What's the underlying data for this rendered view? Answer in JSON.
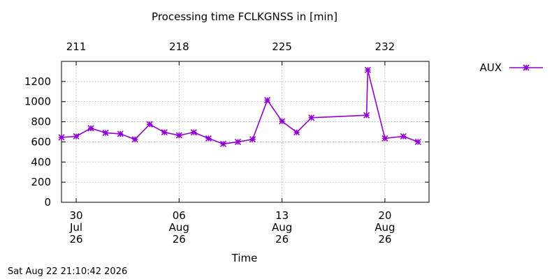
{
  "chart_data": {
    "type": "line",
    "title": "Processing time FCLKGNSS in [min]",
    "xlabel": "Time",
    "ylabel": "",
    "ylim": [
      0,
      1400
    ],
    "yticks": [
      0,
      200,
      400,
      600,
      800,
      1000,
      1200
    ],
    "x_range": [
      "2026-07-29",
      "2026-08-23"
    ],
    "x_ticks": [
      {
        "date": "2026-07-30",
        "label": [
          "30",
          "Jul",
          "26"
        ]
      },
      {
        "date": "2026-08-06",
        "label": [
          "06",
          "Aug",
          "26"
        ]
      },
      {
        "date": "2026-08-13",
        "label": [
          "13",
          "Aug",
          "26"
        ]
      },
      {
        "date": "2026-08-20",
        "label": [
          "20",
          "Aug",
          "26"
        ]
      }
    ],
    "x2_ticks": [
      {
        "date": "2026-07-30",
        "label": "211"
      },
      {
        "date": "2026-08-06",
        "label": "218"
      },
      {
        "date": "2026-08-13",
        "label": "225"
      },
      {
        "date": "2026-08-20",
        "label": "232"
      }
    ],
    "grid": true,
    "legend_position": "right",
    "series": [
      {
        "name": "AUX",
        "color": "#9400d3",
        "marker": "x-star",
        "points": [
          {
            "x": "2026-07-29 00:00",
            "y": 645
          },
          {
            "x": "2026-07-30 00:00",
            "y": 655
          },
          {
            "x": "2026-07-31 00:00",
            "y": 735
          },
          {
            "x": "2026-08-01 00:00",
            "y": 690
          },
          {
            "x": "2026-08-02 00:00",
            "y": 680
          },
          {
            "x": "2026-08-03 00:00",
            "y": 625
          },
          {
            "x": "2026-08-04 00:00",
            "y": 775
          },
          {
            "x": "2026-08-05 00:00",
            "y": 695
          },
          {
            "x": "2026-08-06 00:00",
            "y": 665
          },
          {
            "x": "2026-08-07 00:00",
            "y": 695
          },
          {
            "x": "2026-08-08 00:00",
            "y": 635
          },
          {
            "x": "2026-08-09 00:00",
            "y": 580
          },
          {
            "x": "2026-08-10 00:00",
            "y": 600
          },
          {
            "x": "2026-08-11 00:00",
            "y": 625
          },
          {
            "x": "2026-08-12 00:00",
            "y": 1015
          },
          {
            "x": "2026-08-13 00:00",
            "y": 805
          },
          {
            "x": "2026-08-14 00:00",
            "y": 695
          },
          {
            "x": "2026-08-15 00:00",
            "y": 840
          },
          {
            "x": "2026-08-18 18:00",
            "y": 865
          },
          {
            "x": "2026-08-18 20:00",
            "y": 1315
          },
          {
            "x": "2026-08-20 00:00",
            "y": 635
          },
          {
            "x": "2026-08-21 06:00",
            "y": 655
          },
          {
            "x": "2026-08-22 06:00",
            "y": 600
          }
        ]
      }
    ]
  },
  "footer": {
    "timestamp": "Sat Aug 22 21:10:42 2026"
  }
}
